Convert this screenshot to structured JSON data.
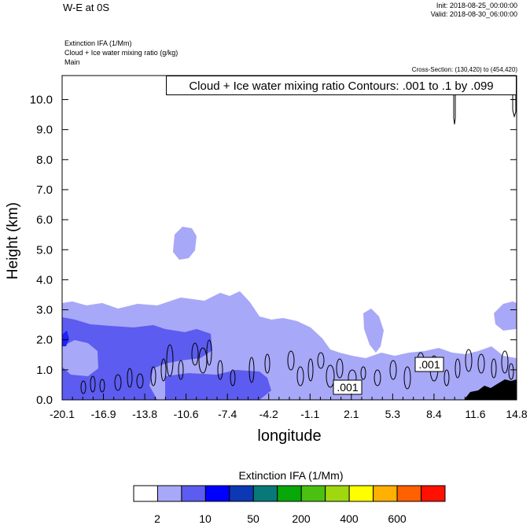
{
  "header": {
    "title": "W-E at 0S",
    "init": "Init: 2018-08-25_00:00:00",
    "valid": "Valid: 2018-08-30_06:00:00"
  },
  "fields": {
    "line1": "Extinction IFA   (1/Mm)",
    "line2": "Cloud + Ice water mixing ratio   (g/kg)",
    "line3": "Main"
  },
  "cross_section": "Cross-Section: (130,420) to (454,420)",
  "contour_info": "Cloud + Ice water mixing ratio Contours: .001 to .1 by .099",
  "chart_data": {
    "type": "heatmap",
    "title": "",
    "xlabel": "longitude",
    "ylabel": "Height (km)",
    "xlim": [
      -20.1,
      14.8
    ],
    "ylim": [
      0,
      10.8
    ],
    "x_ticks": [
      "-20.1",
      "-16.9",
      "-13.8",
      "-10.6",
      "-7.4",
      "-4.2",
      "-1.1",
      "2.1",
      "5.3",
      "8.4",
      "11.6",
      "14.8"
    ],
    "y_ticks": [
      "0.0",
      "1.0",
      "2.0",
      "3.0",
      "4.0",
      "5.0",
      "6.0",
      "7.0",
      "8.0",
      "9.0",
      "10.0"
    ],
    "grid": false,
    "contour_labels": [
      ".001",
      ".001"
    ],
    "colorbar": {
      "title": "Extinction IFA  (1/Mm)",
      "colors": [
        "#ffffff",
        "#a8a8f8",
        "#5c5cf0",
        "#0000ff",
        "#0c38b4",
        "#087878",
        "#08a808",
        "#4cc010",
        "#a0d810",
        "#ffff00",
        "#ffb000",
        "#ff6000",
        "#ff1000"
      ],
      "tick_labels": [
        "2",
        "10",
        "50",
        "200",
        "400",
        "600"
      ]
    },
    "colors": {
      "light": "#a8a8f8",
      "mid": "#5c5cf0",
      "blue": "#0000ff",
      "terrain": "#000000"
    }
  }
}
